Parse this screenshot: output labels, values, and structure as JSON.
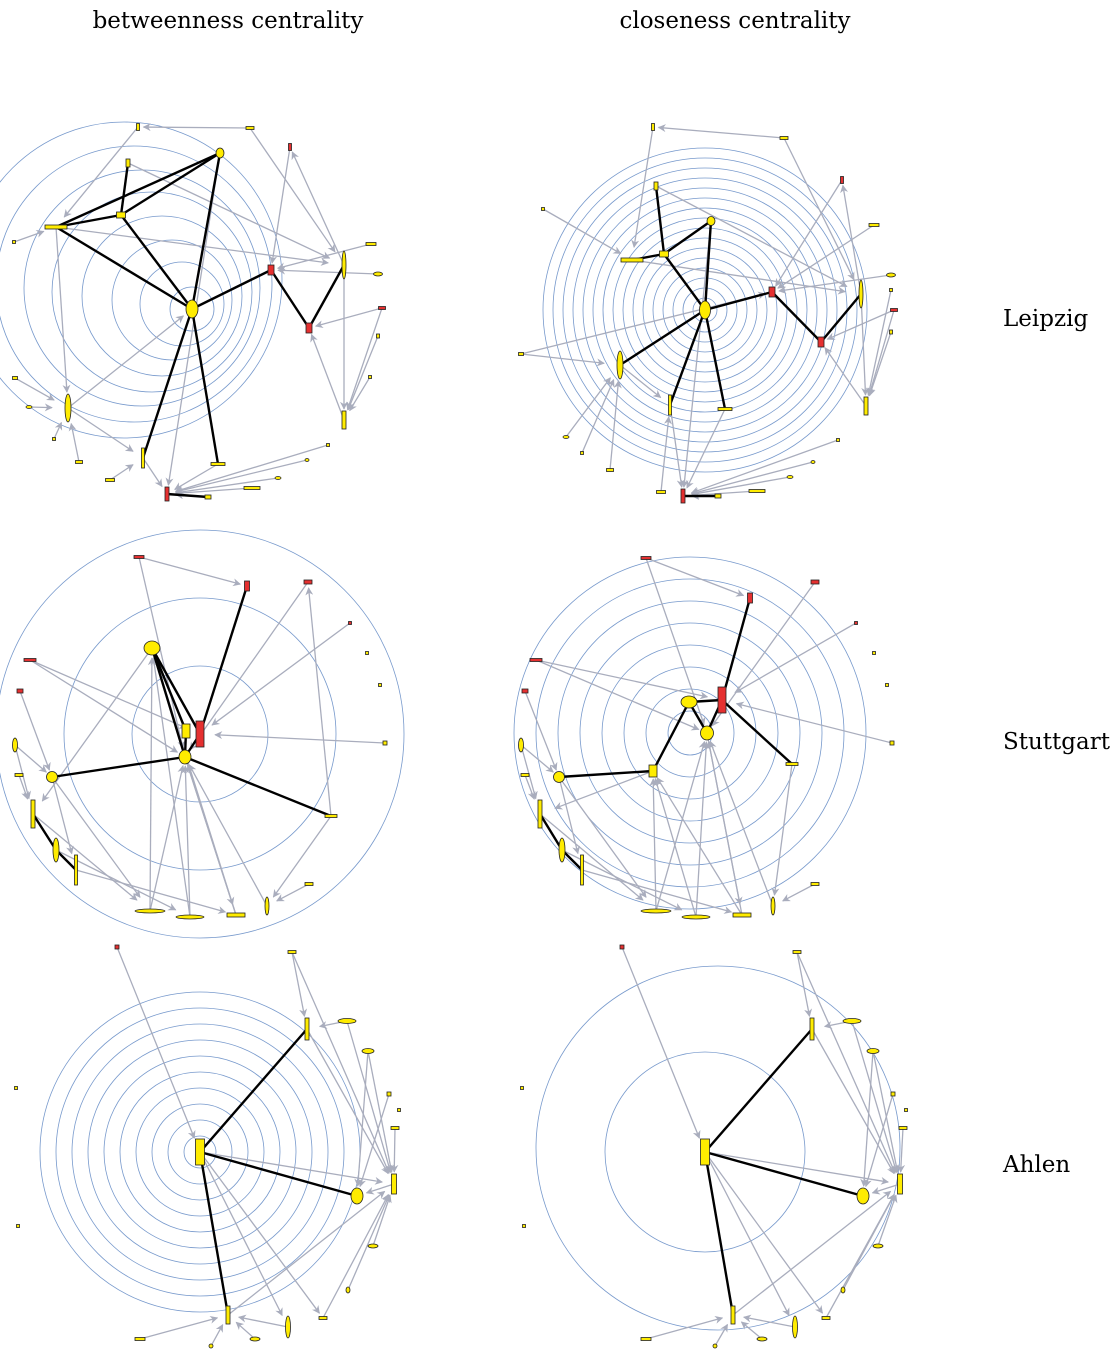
{
  "columns": [
    "betweenness centrality",
    "closeness centrality"
  ],
  "rows": [
    "Leipzig",
    "Stuttgart",
    "Ahlen"
  ],
  "colors": {
    "ring": "#7799cc",
    "arc": "#a9adbd",
    "tree_edge": "#000000",
    "node_yellow": "#ffec00",
    "node_red": "#e53030",
    "node_outline": "#222222"
  }
}
